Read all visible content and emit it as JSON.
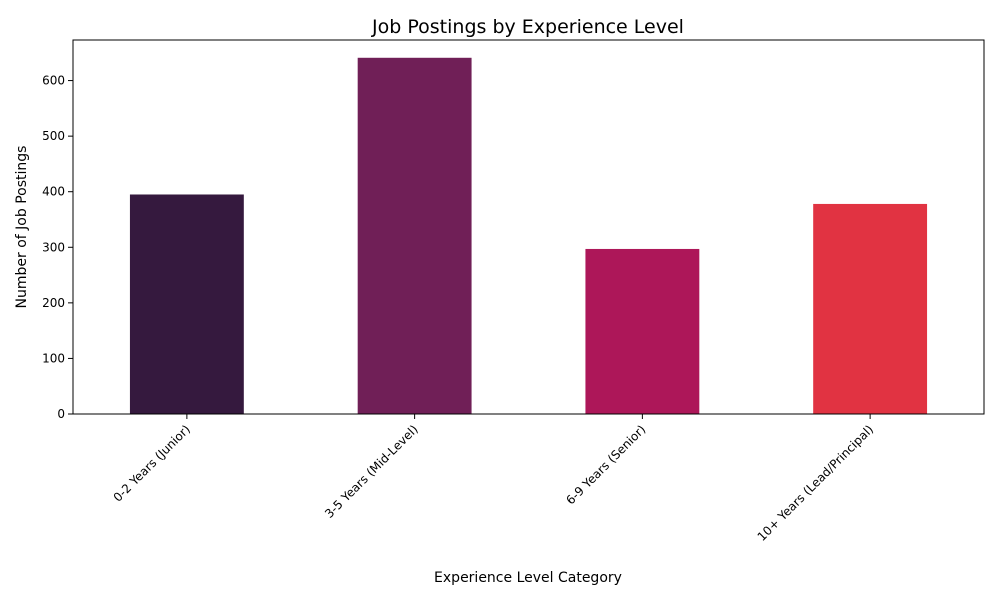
{
  "chart_data": {
    "type": "bar",
    "title": "Job Postings by Experience Level",
    "xlabel": "Experience Level Category",
    "ylabel": "Number of Job Postings",
    "categories": [
      "0-2 Years (Junior)",
      "3-5 Years (Mid-Level)",
      "6-9 Years (Senior)",
      "10+ Years (Lead/Principal)"
    ],
    "values": [
      395,
      641,
      297,
      378
    ],
    "colors": [
      "#35193e",
      "#701f57",
      "#ad1759",
      "#e13342"
    ],
    "yticks": [
      0,
      100,
      200,
      300,
      400,
      500,
      600
    ],
    "ylim": [
      0,
      673
    ],
    "grid": false,
    "legend": "none"
  }
}
